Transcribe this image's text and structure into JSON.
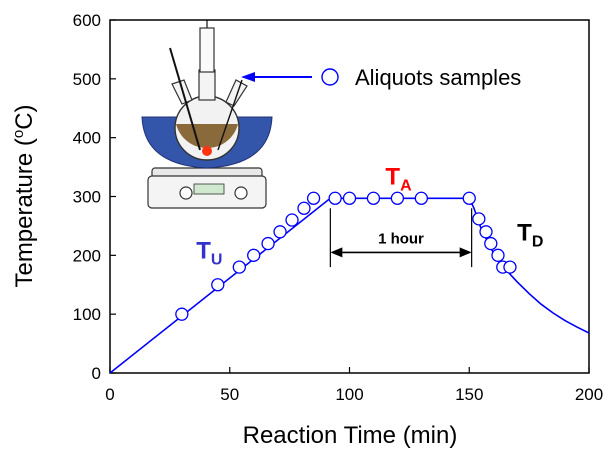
{
  "chart_data": {
    "type": "line",
    "xlabel": "Reaction Time (min)",
    "ylabel_main": "Temperature (",
    "ylabel_sup": "o",
    "ylabel_tail": "C)",
    "xlim": [
      0,
      200
    ],
    "ylim": [
      0,
      600
    ],
    "xticks": [
      0,
      50,
      100,
      150,
      200
    ],
    "yticks": [
      0,
      100,
      200,
      300,
      400,
      500,
      600
    ],
    "line_color": "#0000ff",
    "marker_color": "#0000ff",
    "series": [
      {
        "name": "",
        "x": [
          0,
          92,
          150,
          152,
          155,
          160,
          165,
          170,
          175,
          180,
          185,
          190,
          195,
          200
        ],
        "y": [
          0,
          297,
          297,
          280,
          245,
          205,
          177,
          155,
          135,
          117,
          102,
          89,
          78,
          68
        ]
      }
    ],
    "samples": {
      "x": [
        30,
        45,
        54,
        60,
        66,
        71,
        76,
        81,
        85,
        94,
        100,
        110,
        120,
        130,
        150,
        154,
        157,
        159,
        162,
        164,
        167
      ],
      "y": [
        100,
        150,
        180,
        200,
        220,
        240,
        260,
        280,
        297,
        297,
        297,
        297,
        297,
        297,
        297,
        262,
        240,
        220,
        200,
        180,
        180
      ]
    },
    "legend": {
      "label": "Aliquots samples",
      "placement": "top-right"
    },
    "annotations": {
      "tu": {
        "main": "T",
        "sub": "U",
        "color": "#3333cc",
        "x": 36,
        "y": 195
      },
      "ta": {
        "main": "T",
        "sub": "A",
        "color": "#ff0000",
        "x": 115,
        "y": 320
      },
      "td": {
        "main": "T",
        "sub": "D",
        "color": "#000000",
        "x": 170,
        "y": 225
      },
      "hour": {
        "label": "1 hour",
        "x_start": 92,
        "x_end": 151,
        "y": 205
      }
    }
  }
}
